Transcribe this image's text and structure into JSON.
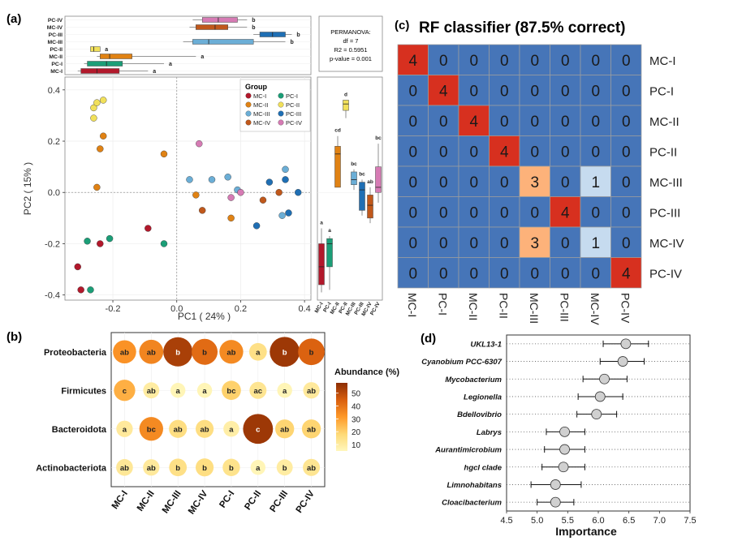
{
  "panels": {
    "a": {
      "label": "(a)"
    },
    "b": {
      "label": "(b)"
    },
    "c": {
      "label": "(c)"
    },
    "d": {
      "label": "(d)"
    }
  },
  "colors": {
    "MC-I": "#b2182b",
    "PC-I": "#1b9e77",
    "MC-II": "#e08214",
    "PC-II": "#f1e05a",
    "MC-III": "#6baed6",
    "PC-III": "#1f6fb4",
    "MC-IV": "#c0581b",
    "PC-IV": "#d67bb4",
    "heat_base": "#4675b8",
    "heat_red": "#d7301f",
    "heat_orange": "#fdb27a",
    "heat_light": "#c6dbef"
  },
  "chart_data": [
    {
      "id": "pcoa",
      "type": "scatter",
      "xlabel": "PC1 ( 24% )",
      "ylabel": "PC2 ( 15% )",
      "xlim": [
        -0.35,
        0.42
      ],
      "ylim": [
        -0.42,
        0.45
      ],
      "xticks": [
        -0.2,
        0.0,
        0.2,
        0.4
      ],
      "xtick_labels": [
        "-0.2",
        "0.0",
        "0.2",
        "0.4"
      ],
      "yticks": [
        -0.4,
        -0.2,
        0.0,
        0.2,
        0.4
      ],
      "ytick_labels": [
        "-0.4",
        "-0.2",
        "0.0",
        "0.2",
        "0.4"
      ],
      "legend_title": "Group",
      "legend_position": "top-right",
      "legend": [
        "MC-I",
        "PC-I",
        "MC-II",
        "PC-II",
        "MC-III",
        "PC-III",
        "MC-IV",
        "PC-IV"
      ],
      "series": [
        {
          "name": "MC-I",
          "points": [
            [
              -0.31,
              -0.29
            ],
            [
              -0.3,
              -0.38
            ],
            [
              -0.24,
              -0.2
            ],
            [
              -0.09,
              -0.14
            ]
          ]
        },
        {
          "name": "PC-I",
          "points": [
            [
              -0.27,
              -0.38
            ],
            [
              -0.28,
              -0.19
            ],
            [
              -0.21,
              -0.18
            ],
            [
              -0.04,
              -0.2
            ]
          ]
        },
        {
          "name": "MC-II",
          "points": [
            [
              -0.25,
              0.02
            ],
            [
              -0.24,
              0.17
            ],
            [
              -0.23,
              0.22
            ],
            [
              -0.04,
              0.15
            ],
            [
              0.06,
              -0.01
            ],
            [
              0.17,
              -0.1
            ]
          ]
        },
        {
          "name": "PC-II",
          "points": [
            [
              -0.26,
              0.29
            ],
            [
              -0.26,
              0.33
            ],
            [
              -0.25,
              0.35
            ],
            [
              -0.23,
              0.36
            ]
          ]
        },
        {
          "name": "MC-III",
          "points": [
            [
              0.04,
              0.05
            ],
            [
              0.11,
              0.05
            ],
            [
              0.16,
              0.06
            ],
            [
              0.19,
              0.01
            ],
            [
              0.34,
              0.09
            ],
            [
              0.33,
              -0.09
            ]
          ]
        },
        {
          "name": "PC-III",
          "points": [
            [
              0.25,
              -0.13
            ],
            [
              0.29,
              0.04
            ],
            [
              0.34,
              0.05
            ],
            [
              0.35,
              -0.08
            ],
            [
              0.38,
              0.0
            ]
          ]
        },
        {
          "name": "MC-IV",
          "points": [
            [
              0.08,
              -0.07
            ],
            [
              0.27,
              -0.03
            ],
            [
              0.32,
              0.0
            ]
          ]
        },
        {
          "name": "PC-IV",
          "points": [
            [
              0.07,
              0.19
            ],
            [
              0.17,
              -0.02
            ],
            [
              0.2,
              0.0
            ]
          ]
        }
      ]
    },
    {
      "id": "pc1-box",
      "type": "boxplot",
      "groups": [
        "PC-IV",
        "MC-IV",
        "PC-III",
        "MC-III",
        "PC-II",
        "MC-II",
        "PC-I",
        "MC-I"
      ],
      "boxes": [
        {
          "group": "PC-IV",
          "whisker_low": 0.05,
          "q1": 0.08,
          "median": 0.13,
          "q3": 0.19,
          "whisker_high": 0.22,
          "letter": "b"
        },
        {
          "group": "MC-IV",
          "whisker_low": 0.04,
          "q1": 0.06,
          "median": 0.12,
          "q3": 0.16,
          "whisker_high": 0.22,
          "letter": "b"
        },
        {
          "group": "PC-III",
          "whisker_low": 0.24,
          "q1": 0.26,
          "median": 0.3,
          "q3": 0.34,
          "whisker_high": 0.36,
          "letter": "b"
        },
        {
          "group": "MC-III",
          "whisker_low": 0.02,
          "q1": 0.05,
          "median": 0.1,
          "q3": 0.24,
          "whisker_high": 0.34,
          "letter": "b"
        },
        {
          "group": "PC-II",
          "whisker_low": -0.27,
          "q1": -0.27,
          "median": -0.26,
          "q3": -0.24,
          "whisker_high": -0.24,
          "letter": "a"
        },
        {
          "group": "MC-II",
          "whisker_low": -0.25,
          "q1": -0.24,
          "median": -0.21,
          "q3": -0.14,
          "whisker_high": 0.06,
          "letter": "a"
        },
        {
          "group": "PC-I",
          "whisker_low": -0.29,
          "q1": -0.28,
          "median": -0.22,
          "q3": -0.17,
          "whisker_high": -0.04,
          "letter": "a"
        },
        {
          "group": "MC-I",
          "whisker_low": -0.31,
          "q1": -0.3,
          "median": -0.25,
          "q3": -0.18,
          "whisker_high": -0.09,
          "letter": "a"
        }
      ]
    },
    {
      "id": "pc2-box",
      "type": "boxplot",
      "groups": [
        "MC-I",
        "PC-I",
        "MC-II",
        "PC-II",
        "MC-III",
        "PC-III",
        "MC-IV",
        "PC-IV"
      ],
      "boxes": [
        {
          "group": "MC-I",
          "whisker_low": -0.39,
          "q1": -0.36,
          "median": -0.29,
          "q3": -0.2,
          "whisker_high": -0.14,
          "letter": "a"
        },
        {
          "group": "PC-I",
          "whisker_low": -0.38,
          "q1": -0.29,
          "median": -0.2,
          "q3": -0.18,
          "whisker_high": -0.17,
          "letter": "a"
        },
        {
          "group": "MC-II",
          "whisker_low": 0.02,
          "q1": 0.02,
          "median": 0.15,
          "q3": 0.18,
          "whisker_high": 0.22,
          "letter": "cd"
        },
        {
          "group": "PC-II",
          "whisker_low": 0.29,
          "q1": 0.32,
          "median": 0.345,
          "q3": 0.36,
          "whisker_high": 0.36,
          "letter": "d"
        },
        {
          "group": "MC-III",
          "whisker_low": 0.01,
          "q1": 0.03,
          "median": 0.05,
          "q3": 0.08,
          "whisker_high": 0.09,
          "letter": "bc"
        },
        {
          "group": "PC-III",
          "whisker_low": -0.09,
          "q1": -0.07,
          "median": 0.01,
          "q3": 0.04,
          "whisker_high": 0.05,
          "letter": "bc"
        },
        {
          "group": "MC-IV",
          "whisker_low": -0.12,
          "q1": -0.1,
          "median": -0.05,
          "q3": -0.01,
          "whisker_high": 0.02,
          "letter": "ab"
        },
        {
          "group": "PC-IV",
          "whisker_low": -0.04,
          "q1": 0.0,
          "median": 0.02,
          "q3": 0.1,
          "whisker_high": 0.19,
          "letter": "bc"
        }
      ]
    },
    {
      "id": "permanova",
      "type": "table",
      "lines": [
        "PERMANOVA:",
        "df = 7",
        "R2 = 0.5951",
        "p-value = 0.001"
      ]
    },
    {
      "id": "confusion",
      "type": "heatmap",
      "title": "RF classifier (87.5% correct)",
      "rows": [
        "MC-I",
        "PC-I",
        "MC-II",
        "PC-II",
        "MC-III",
        "PC-III",
        "MC-IV",
        "PC-IV"
      ],
      "cols": [
        "MC-I",
        "PC-I",
        "MC-II",
        "PC-II",
        "MC-III",
        "PC-III",
        "MC-IV",
        "PC-IV"
      ],
      "values": [
        [
          4,
          0,
          0,
          0,
          0,
          0,
          0,
          0
        ],
        [
          0,
          4,
          0,
          0,
          0,
          0,
          0,
          0
        ],
        [
          0,
          0,
          4,
          0,
          0,
          0,
          0,
          0
        ],
        [
          0,
          0,
          0,
          4,
          0,
          0,
          0,
          0
        ],
        [
          0,
          0,
          0,
          0,
          3,
          0,
          1,
          0
        ],
        [
          0,
          0,
          0,
          0,
          0,
          4,
          0,
          0
        ],
        [
          0,
          0,
          0,
          0,
          3,
          0,
          1,
          0
        ],
        [
          0,
          0,
          0,
          0,
          0,
          0,
          0,
          4
        ]
      ]
    },
    {
      "id": "abundance",
      "type": "bubble",
      "rows": [
        "Proteobacteria",
        "Firmicutes",
        "Bacteroidota",
        "Actinobacteriota"
      ],
      "cols": [
        "MC-I",
        "MC-II",
        "MC-III",
        "MC-IV",
        "PC-I",
        "PC-II",
        "PC-III",
        "PC-IV"
      ],
      "legend_title": "Abundance (%)",
      "legend_ticks": [
        10,
        20,
        30,
        40,
        50
      ],
      "value_range": [
        5,
        58
      ],
      "values": [
        [
          33,
          36,
          53,
          42,
          35,
          15,
          55,
          44
        ],
        [
          27,
          10,
          6,
          6,
          20,
          13,
          6,
          11
        ],
        [
          11,
          35,
          16,
          16,
          9,
          55,
          19,
          19
        ],
        [
          12,
          11,
          15,
          16,
          14,
          6,
          10,
          13
        ]
      ],
      "letters": [
        [
          "ab",
          "ab",
          "b",
          "b",
          "ab",
          "a",
          "b",
          "b"
        ],
        [
          "c",
          "ab",
          "a",
          "a",
          "bc",
          "ac",
          "a",
          "ab"
        ],
        [
          "a",
          "bc",
          "ab",
          "ab",
          "a",
          "c",
          "ab",
          "ab"
        ],
        [
          "ab",
          "ab",
          "b",
          "b",
          "b",
          "a",
          "b",
          "ab"
        ]
      ]
    },
    {
      "id": "importance",
      "type": "errorbar",
      "xlabel": "Importance",
      "xlim": [
        4.5,
        7.5
      ],
      "xticks": [
        4.5,
        5.0,
        5.5,
        6.0,
        6.5,
        7.0,
        7.5
      ],
      "xtick_labels": [
        "4.5",
        "5.0",
        "5.5",
        "6.0",
        "6.5",
        "7.0",
        "7.5"
      ],
      "categories": [
        "UKL13-1",
        "Cyanobium PCC-6307",
        "Mycobacterium",
        "Legionella",
        "Bdellovibrio",
        "Labrys",
        "Aurantimicrobium",
        "hgcI clade",
        "Limnohabitans",
        "Cloacibacterium"
      ],
      "mean": [
        6.45,
        6.4,
        6.1,
        6.03,
        5.97,
        5.45,
        5.45,
        5.43,
        5.3,
        5.3
      ],
      "low": [
        6.08,
        6.03,
        5.75,
        5.67,
        5.65,
        5.15,
        5.12,
        5.08,
        4.9,
        5.0
      ],
      "high": [
        6.82,
        6.75,
        6.47,
        6.4,
        6.3,
        5.78,
        5.78,
        5.78,
        5.72,
        5.6
      ]
    }
  ]
}
